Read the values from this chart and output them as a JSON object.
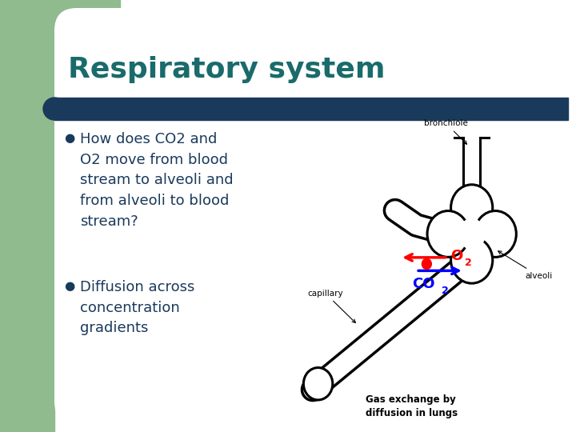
{
  "title": "Respiratory system",
  "title_color": "#1a6b6b",
  "title_fontsize": 26,
  "bar_color": "#1a3a5c",
  "bullet_color": "#1a3a5c",
  "text_fontsize": 13,
  "bullet1_text": "How does CO2 and\nO2 move from blood\nstream to alveoli and\nfrom alveoli to blood\nstream?",
  "bullet2_text": "Diffusion across\nconcentration\ngradients",
  "bg_color": "#ffffff",
  "left_panel_color": "#8fbb8f",
  "fig_width": 7.2,
  "fig_height": 5.4,
  "dpi": 100
}
